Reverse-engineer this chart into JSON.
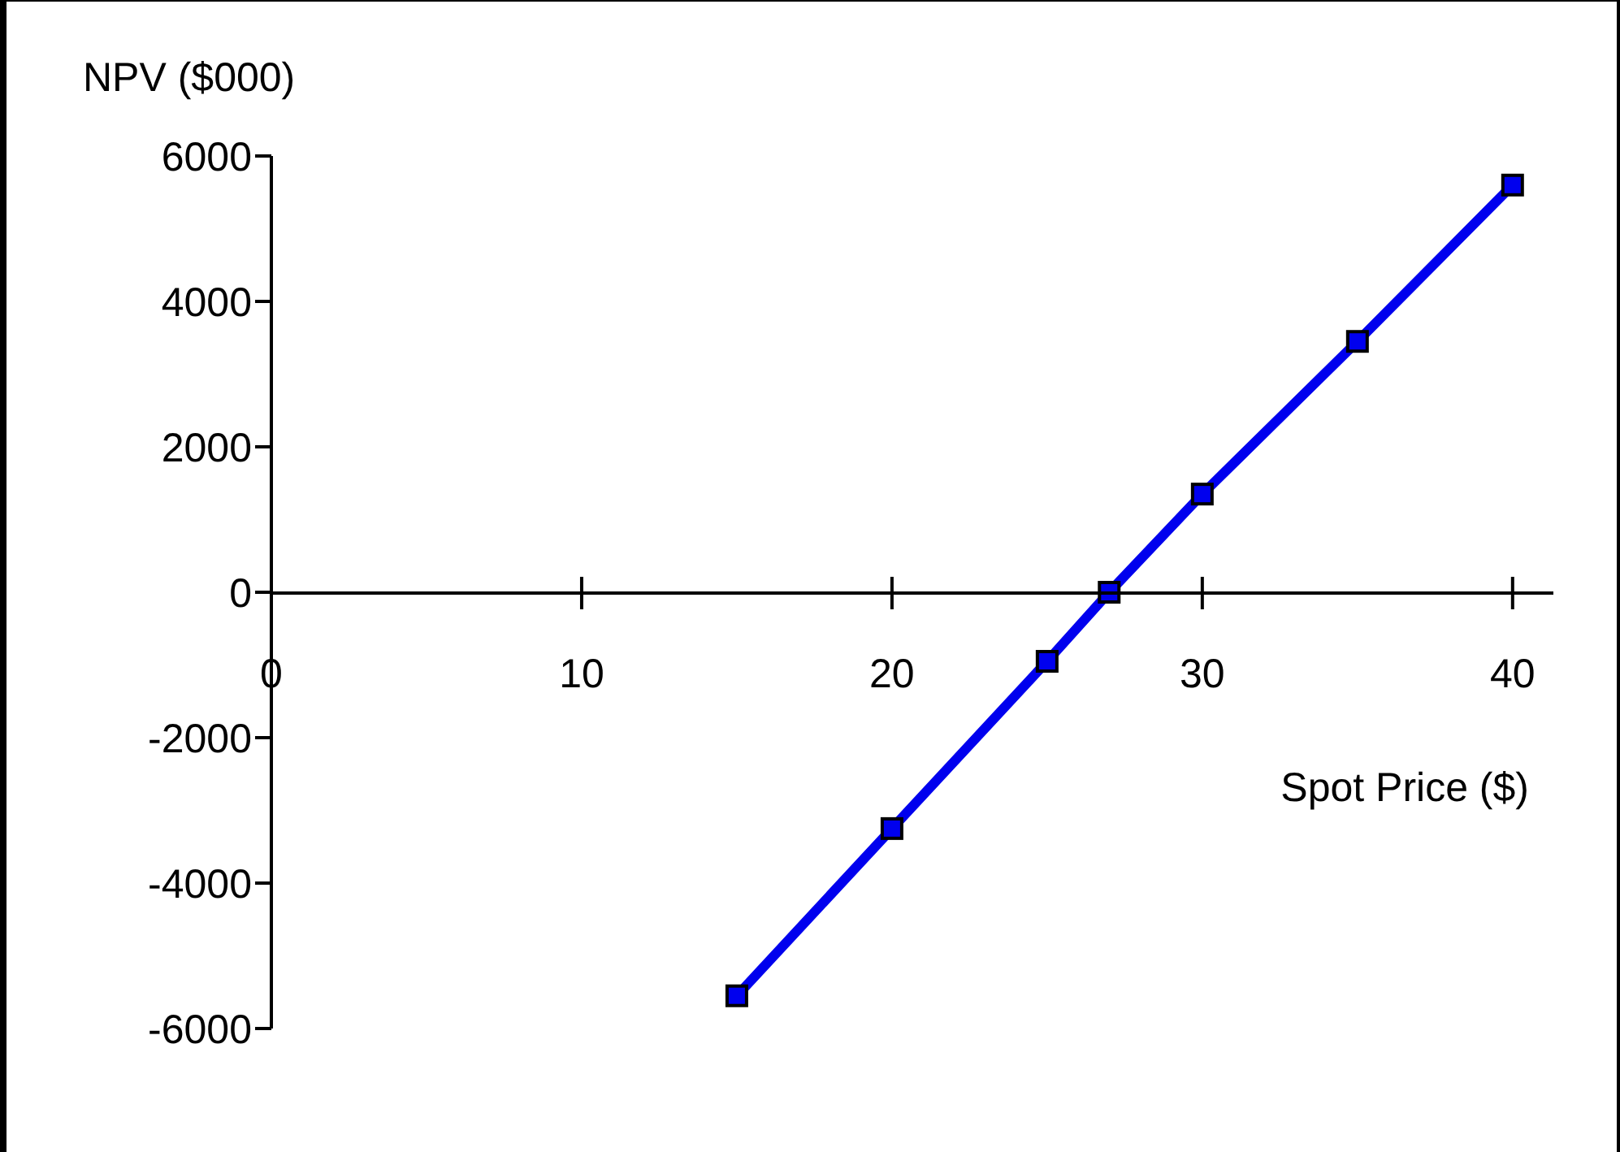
{
  "chart_data": {
    "type": "line",
    "xlabel": "Spot Price ($)",
    "ylabel": "NPV ($000)",
    "x": [
      15,
      20,
      25,
      27,
      30,
      35,
      40
    ],
    "series": [
      {
        "color": "#0000ee",
        "values": [
          -5550,
          -3250,
          -950,
          0,
          1350,
          3450,
          5600
        ]
      }
    ],
    "xlim": [
      0,
      41
    ],
    "xticks": [
      0,
      10,
      20,
      30,
      40
    ],
    "ylim": [
      -6000,
      6000
    ],
    "yticks": [
      -6000,
      -4000,
      -2000,
      0,
      2000,
      4000,
      6000
    ],
    "marker": "square",
    "line_style": "solid",
    "grid": false,
    "legend": false
  }
}
